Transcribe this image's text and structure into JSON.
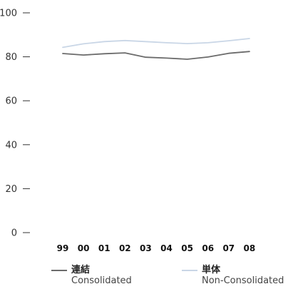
{
  "chart_data": {
    "type": "line",
    "categories": [
      "99",
      "00",
      "01",
      "02",
      "03",
      "04",
      "05",
      "06",
      "07",
      "08"
    ],
    "series": [
      {
        "name": "連結 Consolidated",
        "name_jp": "連結",
        "name_en": "Consolidated",
        "color": "#6b6b6b",
        "values": [
          81.5,
          80.8,
          81.4,
          81.8,
          79.8,
          79.4,
          78.9,
          79.9,
          81.6,
          82.4
        ]
      },
      {
        "name": "単体 Non-Consolidated",
        "name_jp": "単体",
        "name_en": "Non-Consolidated",
        "color": "#c9d6e6",
        "values": [
          84.3,
          85.9,
          86.9,
          87.4,
          86.9,
          86.4,
          86.0,
          86.4,
          87.3,
          88.3
        ]
      }
    ],
    "yticks": [
      0,
      20,
      40,
      60,
      80,
      100
    ],
    "ylim": [
      0,
      100
    ],
    "grid": false,
    "legend_position": "bottom"
  }
}
